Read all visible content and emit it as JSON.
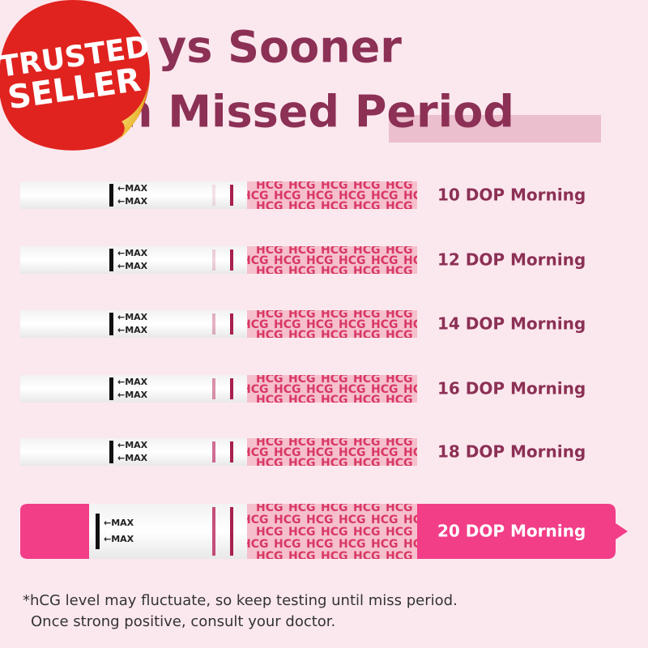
{
  "badge": {
    "line1": "TRUSTED",
    "line2": "SELLER"
  },
  "headline": {
    "line1": "ys Sooner",
    "line2": "n Missed Period"
  },
  "strip": {
    "max_label": "←MAX",
    "hcg_label": "HCG"
  },
  "rows": [
    {
      "label": "10 DOP Morning"
    },
    {
      "label": "12 DOP Morning"
    },
    {
      "label": "14 DOP Morning"
    },
    {
      "label": "16 DOP Morning"
    },
    {
      "label": "18 DOP Morning"
    },
    {
      "label": "20 DOP Morning",
      "highlighted": true
    }
  ],
  "footnote": {
    "line1": "*hCG level may fluctuate, so keep testing until miss period.",
    "line2": "Once strong positive, consult your doctor."
  }
}
